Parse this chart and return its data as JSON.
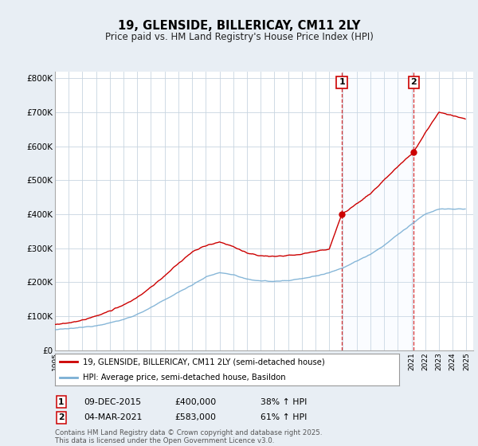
{
  "title": "19, GLENSIDE, BILLERICAY, CM11 2LY",
  "subtitle": "Price paid vs. HM Land Registry's House Price Index (HPI)",
  "ylim": [
    0,
    820000
  ],
  "yticks": [
    0,
    100000,
    200000,
    300000,
    400000,
    500000,
    600000,
    700000,
    800000
  ],
  "ytick_labels": [
    "£0",
    "£100K",
    "£200K",
    "£300K",
    "£400K",
    "£500K",
    "£600K",
    "£700K",
    "£800K"
  ],
  "red_color": "#cc0000",
  "blue_color": "#7aafd4",
  "marker1_value": 400000,
  "marker2_value": 583000,
  "sale1_year": 2015.92,
  "sale2_year": 2021.17,
  "sale1_date": "09-DEC-2015",
  "sale1_price": "£400,000",
  "sale1_hpi": "38% ↑ HPI",
  "sale2_date": "04-MAR-2021",
  "sale2_price": "£583,000",
  "sale2_hpi": "61% ↑ HPI",
  "legend_label1": "19, GLENSIDE, BILLERICAY, CM11 2LY (semi-detached house)",
  "legend_label2": "HPI: Average price, semi-detached house, Basildon",
  "footer": "Contains HM Land Registry data © Crown copyright and database right 2025.\nThis data is licensed under the Open Government Licence v3.0.",
  "background_color": "#e8eef4",
  "plot_bg_color": "#ffffff",
  "grid_color": "#c8d4e0",
  "shade_color": "#ddeeff"
}
